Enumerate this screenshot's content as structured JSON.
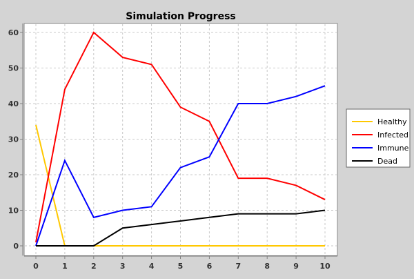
{
  "chart_data": {
    "type": "line",
    "title": "Simulation Progress",
    "xlabel": "",
    "ylabel": "",
    "x": [
      0,
      1,
      2,
      3,
      4,
      5,
      6,
      7,
      8,
      9,
      10
    ],
    "xlim": [
      0,
      10
    ],
    "ylim": [
      0,
      60
    ],
    "xticks": [
      "0",
      "1",
      "2",
      "3",
      "4",
      "5",
      "6",
      "7",
      "8",
      "9",
      "10"
    ],
    "yticks": [
      0,
      10,
      20,
      30,
      40,
      50,
      60
    ],
    "grid": true,
    "legend_position": "right",
    "series": [
      {
        "name": "Healthy",
        "color": "#ffc800",
        "values": [
          34,
          0,
          0,
          0,
          0,
          0,
          0,
          0,
          0,
          0,
          0
        ]
      },
      {
        "name": "Infected",
        "color": "#ff0000",
        "values": [
          1,
          44,
          60,
          53,
          51,
          39,
          35,
          19,
          19,
          17,
          13
        ]
      },
      {
        "name": "Immune",
        "color": "#0000ff",
        "values": [
          0,
          24,
          8,
          10,
          11,
          22,
          25,
          40,
          40,
          42,
          45
        ]
      },
      {
        "name": "Dead",
        "color": "#000000",
        "values": [
          0,
          0,
          0,
          5,
          6,
          7,
          8,
          9,
          9,
          9,
          10
        ]
      }
    ]
  }
}
